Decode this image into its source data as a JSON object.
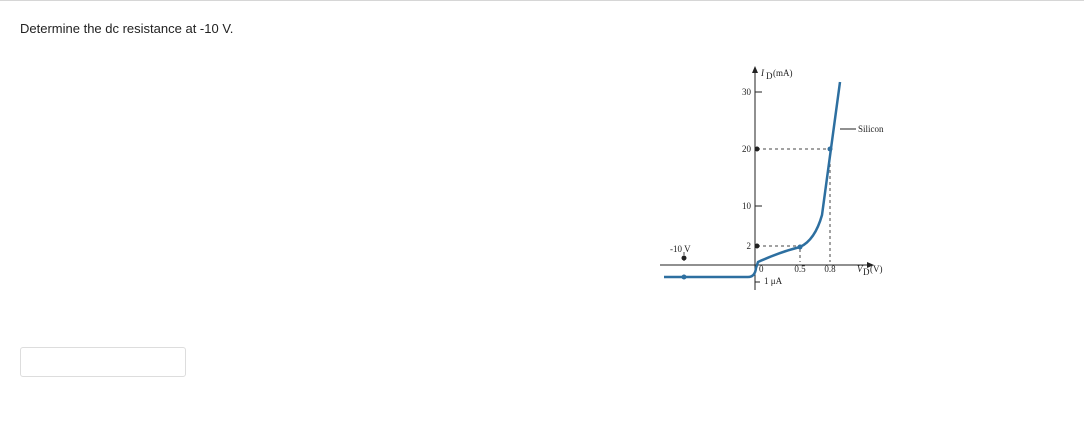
{
  "question": {
    "text": "Determine the dc resistance at -10 V."
  },
  "figure": {
    "y_axis": {
      "symbol": "I",
      "subscript": "D",
      "unit": "(mA)"
    },
    "x_axis": {
      "symbol": "V",
      "subscript": "D",
      "unit": "(V)"
    },
    "y_tick_labels": [
      "30",
      "20",
      "10",
      "2"
    ],
    "x_tick_labels": [
      "0.5",
      "0.8"
    ],
    "origin_label": "0",
    "reverse_current_label": "1 μA",
    "reverse_voltage_label": "-10 V",
    "curve_label": "Silicon"
  }
}
